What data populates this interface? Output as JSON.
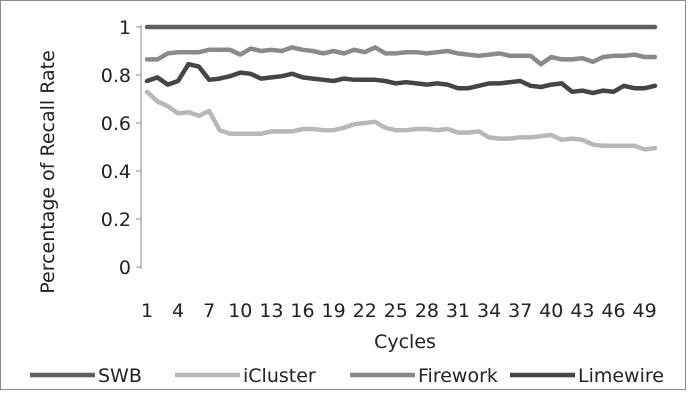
{
  "chart_data": {
    "type": "line",
    "title": "",
    "xlabel": "Cycles",
    "ylabel": "Percentage of Recall Rate",
    "ylim": [
      0,
      1
    ],
    "yticks": [
      "0",
      "0.2",
      "0.4",
      "0.6",
      "0.8",
      "1"
    ],
    "ytick_values": [
      0,
      0.2,
      0.4,
      0.6,
      0.8,
      1
    ],
    "x": [
      1,
      2,
      3,
      4,
      5,
      6,
      7,
      8,
      9,
      10,
      11,
      12,
      13,
      14,
      15,
      16,
      17,
      18,
      19,
      20,
      21,
      22,
      23,
      24,
      25,
      26,
      27,
      28,
      29,
      30,
      31,
      32,
      33,
      34,
      35,
      36,
      37,
      38,
      39,
      40,
      41,
      42,
      43,
      44,
      45,
      46,
      47,
      48,
      49,
      50
    ],
    "xticks": [
      "1",
      "4",
      "7",
      "10",
      "13",
      "16",
      "19",
      "22",
      "25",
      "28",
      "31",
      "34",
      "37",
      "40",
      "43",
      "46",
      "49"
    ],
    "xtick_values": [
      1,
      4,
      7,
      10,
      13,
      16,
      19,
      22,
      25,
      28,
      31,
      34,
      37,
      40,
      43,
      46,
      49
    ],
    "grid": false,
    "legend": "bottom",
    "series": [
      {
        "name": "SWB",
        "color": "#5f5f5f",
        "values": [
          1,
          1,
          1,
          1,
          1,
          1,
          1,
          1,
          1,
          1,
          1,
          1,
          1,
          1,
          1,
          1,
          1,
          1,
          1,
          1,
          1,
          1,
          1,
          1,
          1,
          1,
          1,
          1,
          1,
          1,
          1,
          1,
          1,
          1,
          1,
          1,
          1,
          1,
          1,
          1,
          1,
          1,
          1,
          1,
          1,
          1,
          1,
          1,
          1,
          1
        ]
      },
      {
        "name": "iCluster",
        "color": "#b8b8b8",
        "values": [
          0.73,
          0.69,
          0.67,
          0.64,
          0.645,
          0.63,
          0.65,
          0.57,
          0.555,
          0.555,
          0.555,
          0.555,
          0.565,
          0.565,
          0.565,
          0.575,
          0.575,
          0.57,
          0.57,
          0.58,
          0.595,
          0.6,
          0.605,
          0.58,
          0.57,
          0.57,
          0.575,
          0.575,
          0.57,
          0.575,
          0.56,
          0.56,
          0.565,
          0.54,
          0.535,
          0.535,
          0.54,
          0.54,
          0.545,
          0.55,
          0.53,
          0.535,
          0.53,
          0.51,
          0.505,
          0.505,
          0.505,
          0.505,
          0.49,
          0.495
        ]
      },
      {
        "name": "Firework",
        "color": "#8a8a8a",
        "values": [
          0.865,
          0.865,
          0.89,
          0.895,
          0.895,
          0.895,
          0.905,
          0.905,
          0.905,
          0.885,
          0.91,
          0.9,
          0.905,
          0.9,
          0.915,
          0.905,
          0.9,
          0.89,
          0.9,
          0.89,
          0.905,
          0.895,
          0.915,
          0.89,
          0.89,
          0.895,
          0.895,
          0.89,
          0.895,
          0.9,
          0.89,
          0.885,
          0.88,
          0.885,
          0.89,
          0.88,
          0.88,
          0.88,
          0.845,
          0.875,
          0.865,
          0.865,
          0.87,
          0.855,
          0.875,
          0.88,
          0.88,
          0.885,
          0.875,
          0.875
        ]
      },
      {
        "name": "Limewire",
        "color": "#454545",
        "values": [
          0.775,
          0.79,
          0.76,
          0.775,
          0.845,
          0.835,
          0.78,
          0.785,
          0.795,
          0.81,
          0.805,
          0.785,
          0.79,
          0.795,
          0.805,
          0.79,
          0.785,
          0.78,
          0.775,
          0.785,
          0.78,
          0.78,
          0.78,
          0.775,
          0.765,
          0.77,
          0.765,
          0.76,
          0.765,
          0.76,
          0.745,
          0.745,
          0.755,
          0.765,
          0.765,
          0.77,
          0.775,
          0.755,
          0.75,
          0.76,
          0.765,
          0.73,
          0.735,
          0.725,
          0.735,
          0.73,
          0.755,
          0.745,
          0.745,
          0.755
        ]
      }
    ]
  }
}
